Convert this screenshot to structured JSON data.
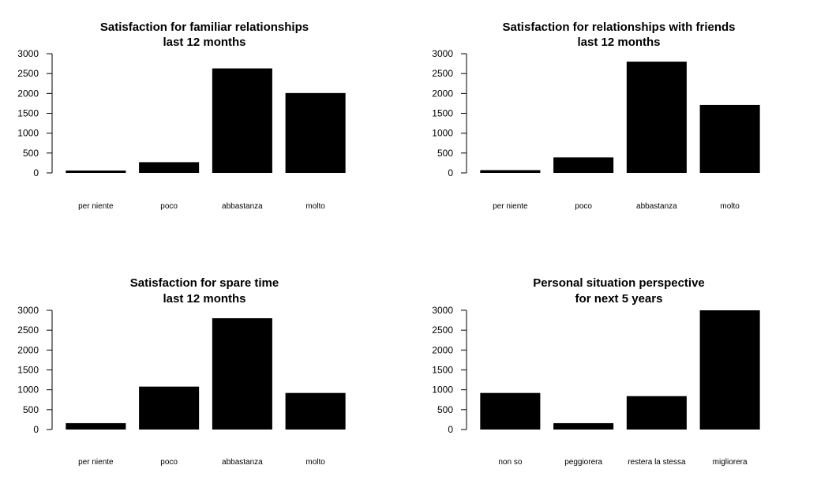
{
  "chart_data": [
    {
      "type": "bar",
      "title": [
        "Satisfaction for familiar relationships",
        "last 12 months"
      ],
      "xlabel": "",
      "ylabel": "",
      "categories": [
        "per niente",
        "poco",
        "abbastanza",
        "molto"
      ],
      "values": [
        60,
        270,
        2630,
        2010
      ],
      "ylim": [
        0,
        3000
      ],
      "yticks": [
        0,
        500,
        1000,
        1500,
        2000,
        2500,
        3000
      ],
      "color": "#000000",
      "grid": false
    },
    {
      "type": "bar",
      "title": [
        "Satisfaction for relationships with friends",
        "last 12 months"
      ],
      "xlabel": "",
      "ylabel": "",
      "categories": [
        "per niente",
        "poco",
        "abbastanza",
        "molto"
      ],
      "values": [
        70,
        390,
        2800,
        1710
      ],
      "ylim": [
        0,
        3000
      ],
      "yticks": [
        0,
        500,
        1000,
        1500,
        2000,
        2500,
        3000
      ],
      "color": "#000000",
      "grid": false
    },
    {
      "type": "bar",
      "title": [
        "Satisfaction for spare time",
        "last 12 months"
      ],
      "xlabel": "",
      "ylabel": "",
      "categories": [
        "per niente",
        "poco",
        "abbastanza",
        "molto"
      ],
      "values": [
        160,
        1080,
        2800,
        920
      ],
      "ylim": [
        0,
        3000
      ],
      "yticks": [
        0,
        500,
        1000,
        1500,
        2000,
        2500,
        3000
      ],
      "color": "#000000",
      "grid": false
    },
    {
      "type": "bar",
      "title": [
        "Personal situation perspective",
        "for next 5 years"
      ],
      "xlabel": "",
      "ylabel": "",
      "categories": [
        "non so",
        "peggiorera",
        "restera la stessa",
        "migliorera"
      ],
      "values": [
        920,
        160,
        840,
        3000
      ],
      "ylim": [
        0,
        3000
      ],
      "yticks": [
        0,
        500,
        1000,
        1500,
        2000,
        2500,
        3000
      ],
      "color": "#000000",
      "grid": false
    }
  ]
}
